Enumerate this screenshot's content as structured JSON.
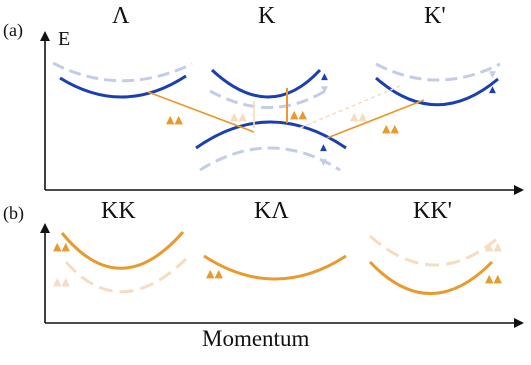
{
  "panel_a": {
    "label": "(a)",
    "y_axis_label": "E",
    "valleys": [
      "Λ",
      "K",
      "K'"
    ]
  },
  "panel_b": {
    "label": "(b)",
    "valleys": [
      "KK",
      "KΛ",
      "KK'"
    ]
  },
  "x_axis_label": "Momentum",
  "colors": {
    "band_blue": "#1a3fb0",
    "band_blue_faded": "#c3cde6",
    "exciton_orange": "#e99a2c",
    "exciton_orange_faded": "#f6dcc0",
    "axis": "#111111"
  },
  "icons": [
    "spin-up-arrow-icon",
    "spin-down-arrow-icon",
    "axis-arrow-icon"
  ]
}
